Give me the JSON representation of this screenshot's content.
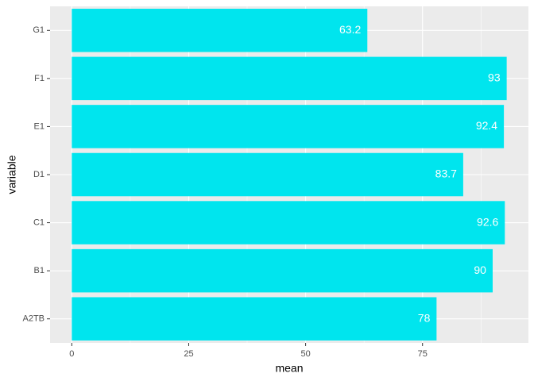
{
  "chart_data": {
    "type": "bar",
    "orientation": "horizontal",
    "x_label": "mean",
    "y_label": "variable",
    "categories": [
      "A2TB",
      "B1",
      "C1",
      "D1",
      "E1",
      "F1",
      "G1"
    ],
    "values": [
      78,
      90,
      92.6,
      83.7,
      92.4,
      93,
      63.2
    ],
    "color": "#00e5ee",
    "xlim": [
      -4.65,
      97.65
    ],
    "xticks": [
      0,
      25,
      50,
      75
    ],
    "grid": true,
    "data_labels": true
  }
}
